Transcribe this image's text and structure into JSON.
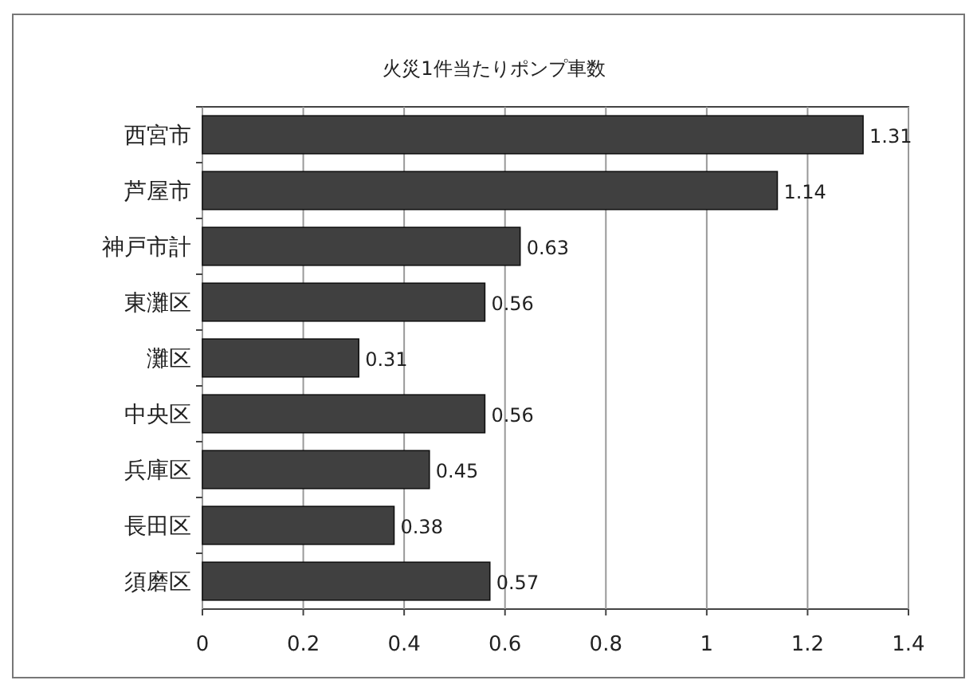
{
  "chart_data": {
    "type": "bar",
    "orientation": "horizontal",
    "title": "火災1件当たりポンプ車数",
    "categories": [
      "西宮市",
      "芦屋市",
      "神戸市計",
      "東灘区",
      "灘区",
      "中央区",
      "兵庫区",
      "長田区",
      "須磨区"
    ],
    "values": [
      1.31,
      1.14,
      0.63,
      0.56,
      0.31,
      0.56,
      0.45,
      0.38,
      0.57
    ],
    "color": "#404040",
    "xlim": [
      0,
      1.4
    ],
    "xticks": [
      0,
      0.2,
      0.4,
      0.6,
      0.8,
      1,
      1.2,
      1.4
    ],
    "grid": "x",
    "data_labels": true
  }
}
